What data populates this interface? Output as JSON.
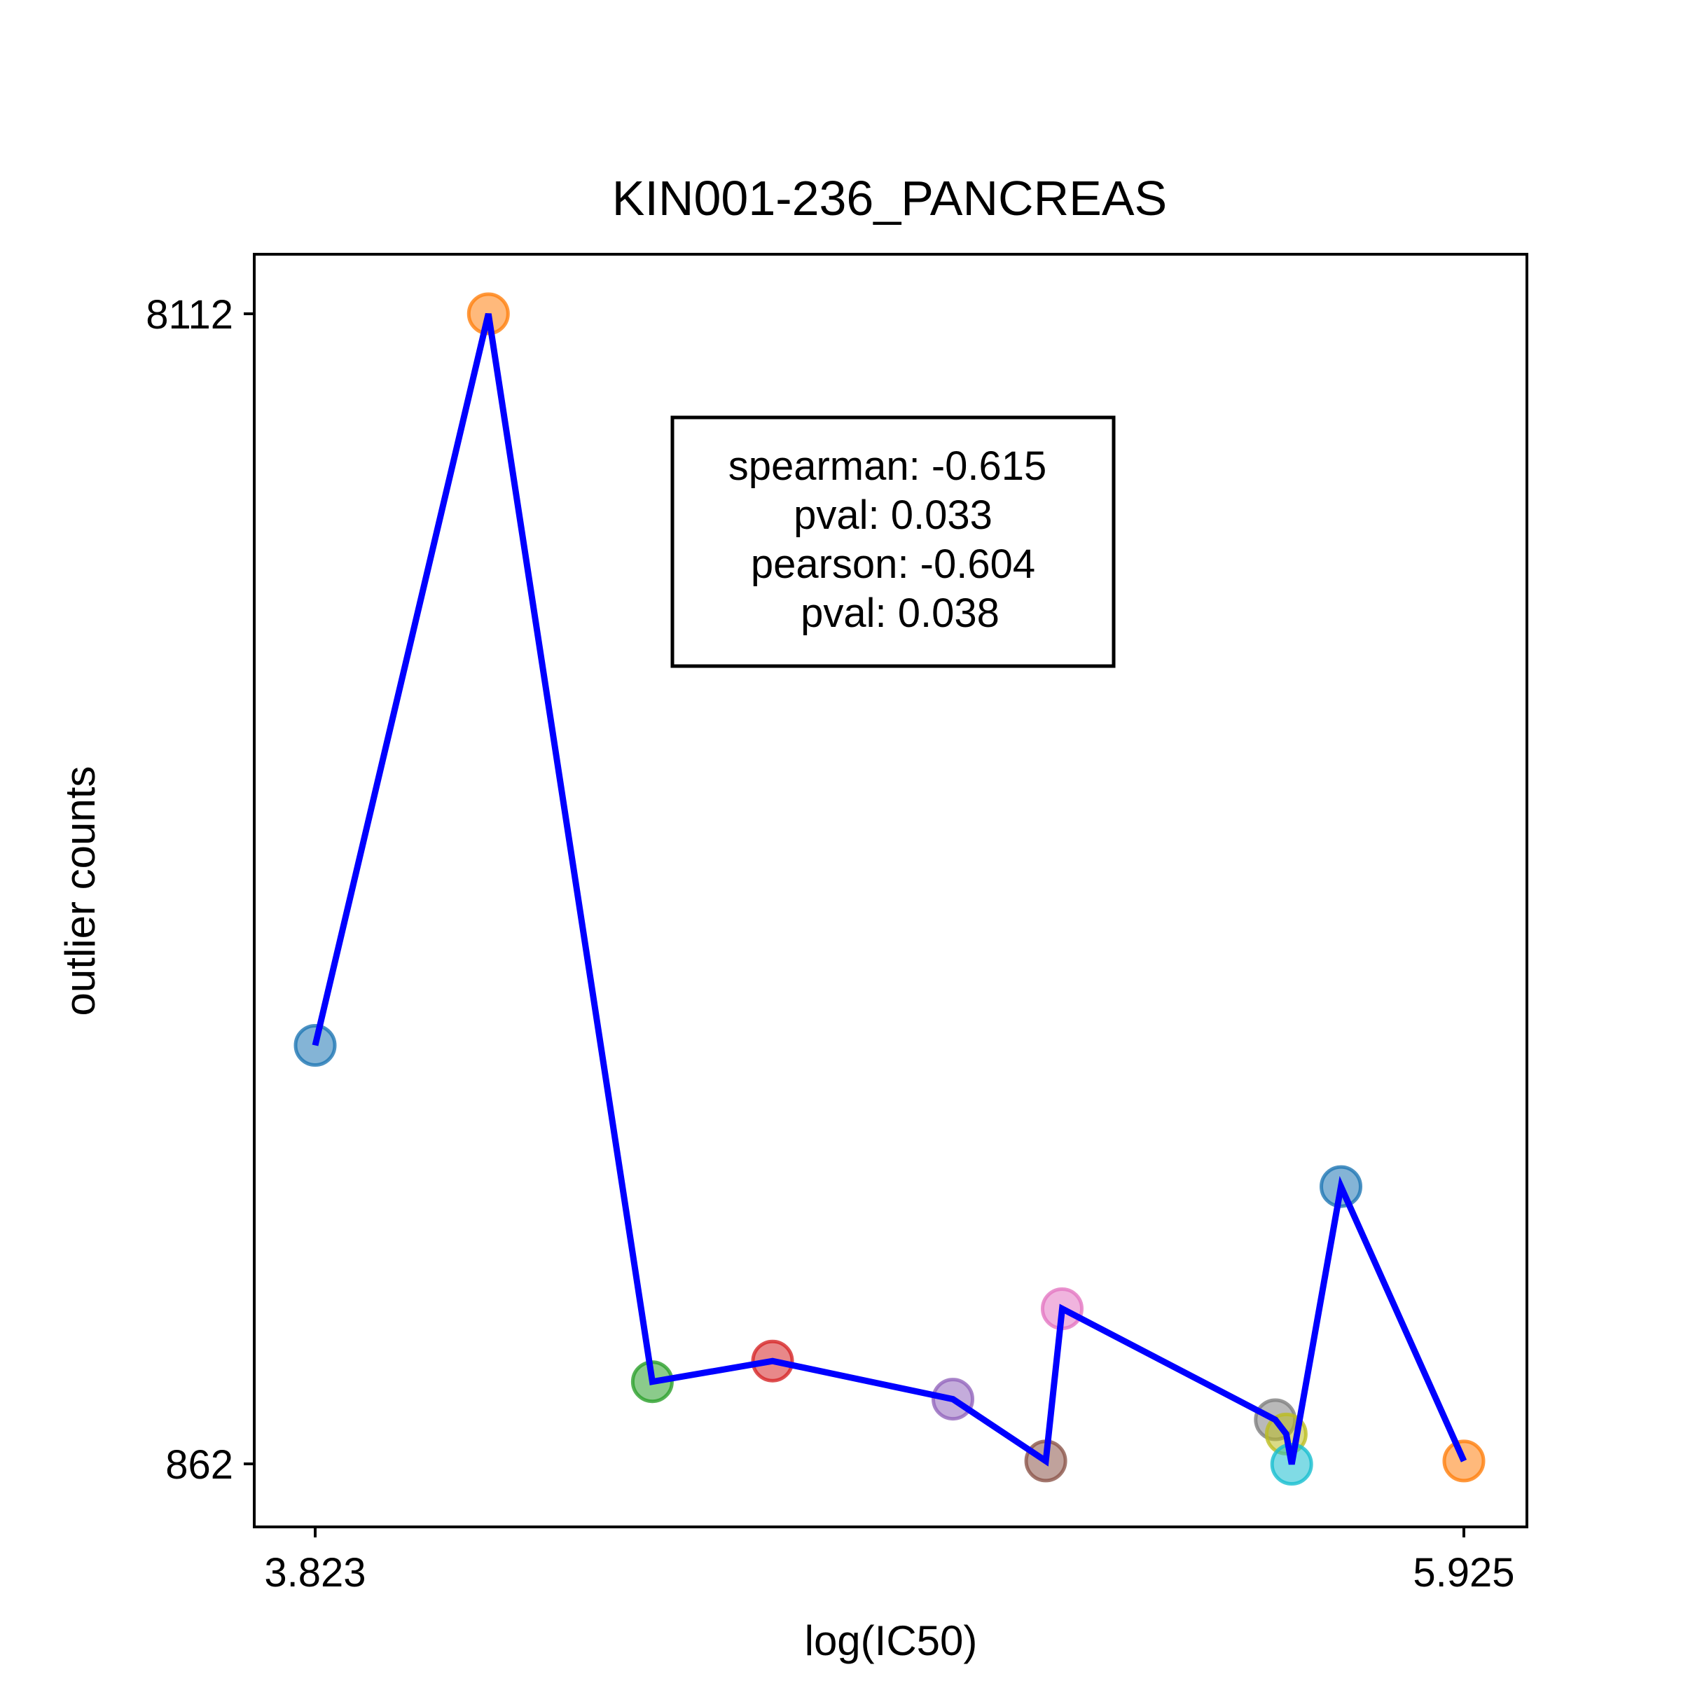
{
  "chart_data": {
    "type": "scatter",
    "title": "KIN001-236_PANCREAS",
    "xlabel": "log(IC50)",
    "ylabel": "outlier counts",
    "xlim": [
      3.823,
      5.925
    ],
    "ylim": [
      862,
      8112
    ],
    "x_tick_labels": [
      "3.823",
      "5.925"
    ],
    "y_tick_labels": [
      "8112",
      "862"
    ],
    "annotation_lines": [
      "spearman: -0.615",
      "pval: 0.033",
      "pearson: -0.604",
      "pval: 0.038"
    ],
    "line_color": "#0000ff",
    "points": [
      {
        "x": 3.823,
        "y": 3500,
        "color": "#1f77b4"
      },
      {
        "x": 4.14,
        "y": 8112,
        "color": "#ff7f0e"
      },
      {
        "x": 4.44,
        "y": 1380,
        "color": "#2ca02c"
      },
      {
        "x": 4.66,
        "y": 1510,
        "color": "#d62728"
      },
      {
        "x": 4.99,
        "y": 1270,
        "color": "#9467bd"
      },
      {
        "x": 5.16,
        "y": 880,
        "color": "#8c564b"
      },
      {
        "x": 5.19,
        "y": 1840,
        "color": "#e377c2"
      },
      {
        "x": 5.58,
        "y": 1140,
        "color": "#7f7f7f"
      },
      {
        "x": 5.6,
        "y": 1050,
        "color": "#bcbd22"
      },
      {
        "x": 5.61,
        "y": 860,
        "color": "#17becf"
      },
      {
        "x": 5.7,
        "y": 2610,
        "color": "#1f77b4"
      },
      {
        "x": 5.925,
        "y": 880,
        "color": "#ff7f0e"
      }
    ]
  }
}
